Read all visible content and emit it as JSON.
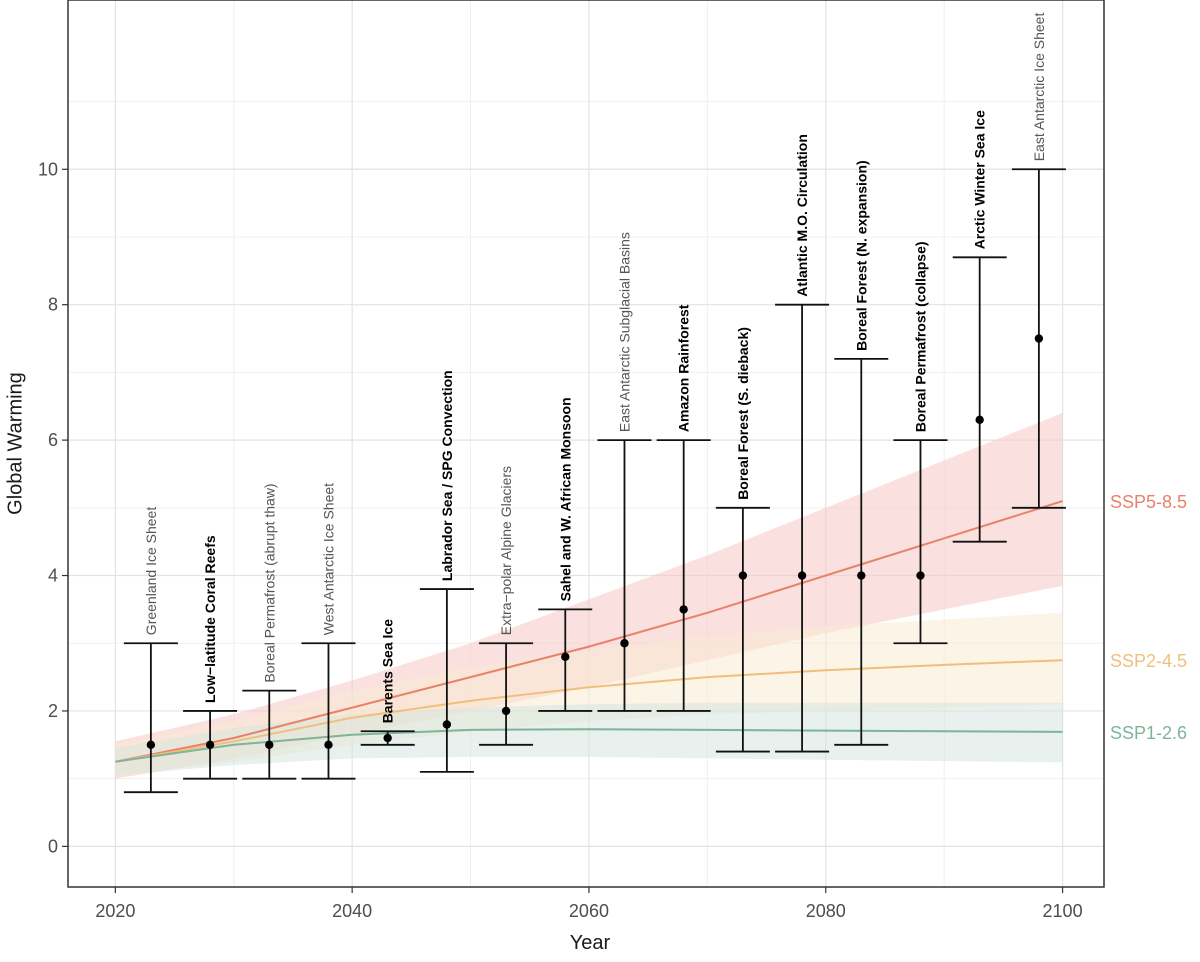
{
  "chart_data": {
    "type": "errorbar-with-bands",
    "title": "",
    "xlabel": "Year",
    "ylabel": "Global Warming",
    "xlim": [
      2016,
      2103.5
    ],
    "ylim": [
      -0.6,
      12.5
    ],
    "xticks": [
      2020,
      2040,
      2060,
      2080,
      2100
    ],
    "yticks": [
      0,
      2,
      4,
      6,
      8,
      10
    ],
    "grid": true,
    "tipping_points": [
      {
        "label": "Greenland Ice Sheet",
        "x": 2023,
        "y": 1.5,
        "low": 0.8,
        "high": 3.0,
        "emphasis": false
      },
      {
        "label": "Low−latitude Coral Reefs",
        "x": 2028,
        "y": 1.5,
        "low": 1.0,
        "high": 2.0,
        "emphasis": true
      },
      {
        "label": "Boreal Permafrost (abrupt thaw)",
        "x": 2033,
        "y": 1.5,
        "low": 1.0,
        "high": 2.3,
        "emphasis": false
      },
      {
        "label": "West Antarctic Ice Sheet",
        "x": 2038,
        "y": 1.5,
        "low": 1.0,
        "high": 3.0,
        "emphasis": false
      },
      {
        "label": "Barents Sea Ice",
        "x": 2043,
        "y": 1.6,
        "low": 1.5,
        "high": 1.7,
        "emphasis": true
      },
      {
        "label": "Labrador Sea / SPG Convection",
        "x": 2048,
        "y": 1.8,
        "low": 1.1,
        "high": 3.8,
        "emphasis": true
      },
      {
        "label": "Extra−polar Alpine Glaciers",
        "x": 2053,
        "y": 2.0,
        "low": 1.5,
        "high": 3.0,
        "emphasis": false
      },
      {
        "label": "Sahel and W. African Monsoon",
        "x": 2058,
        "y": 2.8,
        "low": 2.0,
        "high": 3.5,
        "emphasis": true
      },
      {
        "label": "East Antarctic Subglacial Basins",
        "x": 2063,
        "y": 3.0,
        "low": 2.0,
        "high": 6.0,
        "emphasis": false
      },
      {
        "label": "Amazon Rainforest",
        "x": 2068,
        "y": 3.5,
        "low": 2.0,
        "high": 6.0,
        "emphasis": true
      },
      {
        "label": "Boreal Forest (S. dieback)",
        "x": 2073,
        "y": 4.0,
        "low": 1.4,
        "high": 5.0,
        "emphasis": true
      },
      {
        "label": "Atlantic M.O. Circulation",
        "x": 2078,
        "y": 4.0,
        "low": 1.4,
        "high": 8.0,
        "emphasis": true
      },
      {
        "label": "Boreal Forest (N. expansion)",
        "x": 2083,
        "y": 4.0,
        "low": 1.5,
        "high": 7.2,
        "emphasis": true
      },
      {
        "label": "Boreal Permafrost (collapse)",
        "x": 2088,
        "y": 4.0,
        "low": 3.0,
        "high": 6.0,
        "emphasis": true
      },
      {
        "label": "Arctic Winter Sea Ice",
        "x": 2093,
        "y": 6.3,
        "low": 4.5,
        "high": 8.7,
        "emphasis": true
      },
      {
        "label": "East Antarctic Ice Sheet",
        "x": 2098,
        "y": 7.5,
        "low": 5.0,
        "high": 10.0,
        "emphasis": false
      }
    ],
    "series": [
      {
        "name": "SSP5-8.5",
        "color": "#e8826a",
        "fill": "#f6c8c4",
        "x": [
          2020,
          2030,
          2040,
          2050,
          2060,
          2070,
          2080,
          2090,
          2100
        ],
        "values": [
          1.25,
          1.6,
          2.05,
          2.5,
          2.95,
          3.45,
          4.0,
          4.55,
          5.1
        ],
        "lower": [
          1.0,
          1.3,
          1.65,
          2.0,
          2.35,
          2.75,
          3.15,
          3.5,
          3.85
        ],
        "upper": [
          1.55,
          1.95,
          2.45,
          3.0,
          3.65,
          4.3,
          5.0,
          5.7,
          6.4
        ]
      },
      {
        "name": "SSP2-4.5",
        "color": "#f0bf7c",
        "fill": "#faebd2",
        "x": [
          2020,
          2030,
          2040,
          2050,
          2060,
          2070,
          2080,
          2090,
          2100
        ],
        "values": [
          1.25,
          1.55,
          1.9,
          2.15,
          2.35,
          2.5,
          2.6,
          2.68,
          2.75
        ],
        "lower": [
          1.05,
          1.25,
          1.5,
          1.7,
          1.85,
          1.95,
          2.0,
          2.05,
          2.1
        ],
        "upper": [
          1.5,
          1.85,
          2.3,
          2.65,
          2.9,
          3.1,
          3.25,
          3.35,
          3.45
        ]
      },
      {
        "name": "SSP1-2.6",
        "color": "#7fb39a",
        "fill": "#d6e6df",
        "x": [
          2020,
          2030,
          2040,
          2050,
          2060,
          2070,
          2080,
          2090,
          2100
        ],
        "values": [
          1.25,
          1.5,
          1.65,
          1.72,
          1.73,
          1.72,
          1.71,
          1.7,
          1.69
        ],
        "lower": [
          1.05,
          1.2,
          1.3,
          1.32,
          1.32,
          1.3,
          1.28,
          1.26,
          1.24
        ],
        "upper": [
          1.45,
          1.75,
          1.95,
          2.05,
          2.1,
          2.12,
          2.12,
          2.12,
          2.12
        ]
      }
    ]
  }
}
